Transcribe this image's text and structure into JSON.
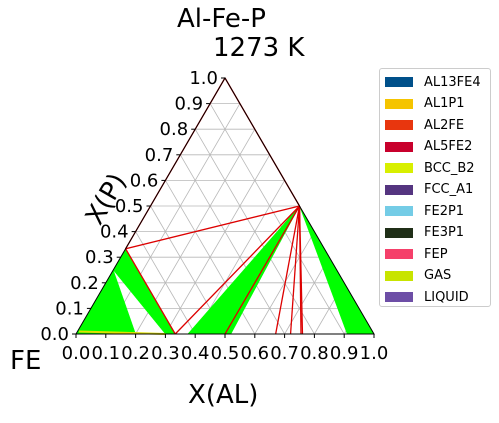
{
  "chart_data": {
    "type": "ternary-phase-diagram",
    "title": "Al-Fe-P",
    "subtitle": "1273  K",
    "xlabel": "X(AL)",
    "ylabel": "X(P)",
    "corner_label": "FE",
    "xlim": [
      0,
      1
    ],
    "ylim": [
      0,
      1
    ],
    "x_ticks": [
      "0.0",
      "0.1",
      "0.2",
      "0.3",
      "0.4",
      "0.5",
      "0.6",
      "0.7",
      "0.8",
      "0.9",
      "1.0"
    ],
    "y_ticks": [
      "0.0",
      "0.1",
      "0.2",
      "0.3",
      "0.4",
      "0.5",
      "0.6",
      "0.7",
      "0.8",
      "0.9",
      "1.0"
    ],
    "grid": true,
    "legend_position": "right",
    "legend": [
      {
        "name": "AL13FE4",
        "color": "#00508a"
      },
      {
        "name": "AL1P1",
        "color": "#f5c400"
      },
      {
        "name": "AL2FE",
        "color": "#e8360e"
      },
      {
        "name": "AL5FE2",
        "color": "#c8002c"
      },
      {
        "name": "BCC_B2",
        "color": "#d8ef00"
      },
      {
        "name": "FCC_A1",
        "color": "#553580"
      },
      {
        "name": "FE2P1",
        "color": "#74cce6"
      },
      {
        "name": "FE3P1",
        "color": "#202f18"
      },
      {
        "name": "FEP",
        "color": "#f5406a"
      },
      {
        "name": "GAS",
        "color": "#c8e400"
      },
      {
        "name": "LIQUID",
        "color": "#6d4ea6"
      }
    ],
    "tie_triangles": [
      [
        [
          0.0,
          0.333
        ],
        [
          0.0,
          0.25
        ],
        [
          0.5,
          0.5
        ]
      ],
      [
        [
          0.0,
          0.333
        ],
        [
          0.333,
          0.0
        ],
        [
          0.5,
          0.5
        ]
      ],
      [
        [
          0.333,
          0.0
        ],
        [
          0.5,
          0.5
        ],
        [
          0.5,
          0.0
        ]
      ],
      [
        [
          0.5,
          0.0
        ],
        [
          0.5,
          0.5
        ],
        [
          0.67,
          0.0
        ]
      ],
      [
        [
          0.67,
          0.0
        ],
        [
          0.5,
          0.5
        ],
        [
          0.72,
          0.0
        ]
      ],
      [
        [
          0.72,
          0.0
        ],
        [
          0.5,
          0.5
        ],
        [
          0.755,
          0.0
        ]
      ],
      [
        [
          0.755,
          0.0
        ],
        [
          0.5,
          0.5
        ],
        [
          0.76,
          0.0
        ]
      ],
      [
        [
          1.0,
          0.0
        ],
        [
          0.5,
          0.5
        ],
        [
          1.0,
          0.0
        ]
      ]
    ],
    "two_phase_regions": [
      {
        "color": "#00ff00",
        "polygon": [
          [
            0.0,
            0.25
          ],
          [
            0.0,
            0.333
          ],
          [
            0.333,
            0.0
          ],
          [
            0.3,
            0.0
          ]
        ]
      },
      {
        "color": "#00ff00",
        "polygon": [
          [
            0.0,
            0.25
          ],
          [
            0.2,
            0.0
          ],
          [
            0.0,
            0.0
          ]
        ]
      },
      {
        "color": "#00ff00",
        "polygon": [
          [
            0.5,
            0.5
          ],
          [
            0.375,
            0.0
          ],
          [
            0.52,
            0.0
          ]
        ]
      },
      {
        "color": "#00ff00",
        "polygon": [
          [
            0.5,
            0.5
          ],
          [
            0.91,
            0.0
          ],
          [
            1.0,
            0.0
          ]
        ]
      }
    ],
    "phase_boundary_lines": [
      [
        [
          0.0,
          0.333
        ],
        [
          0.5,
          0.5
        ]
      ],
      [
        [
          0.0,
          0.333
        ],
        [
          0.333,
          0.0
        ]
      ],
      [
        [
          0.5,
          0.5
        ],
        [
          0.333,
          0.0
        ]
      ],
      [
        [
          0.5,
          0.5
        ],
        [
          0.5,
          0.0
        ]
      ],
      [
        [
          0.5,
          0.5
        ],
        [
          0.67,
          0.0
        ]
      ],
      [
        [
          0.5,
          0.5
        ],
        [
          0.72,
          0.0
        ]
      ],
      [
        [
          0.5,
          0.5
        ],
        [
          0.755,
          0.0
        ]
      ],
      [
        [
          0.5,
          0.5
        ],
        [
          0.76,
          0.0
        ]
      ],
      [
        [
          0.0,
          0.333
        ],
        [
          0.0,
          1.0
        ]
      ],
      [
        [
          0.0,
          1.0
        ],
        [
          0.5,
          0.5
        ]
      ]
    ]
  }
}
